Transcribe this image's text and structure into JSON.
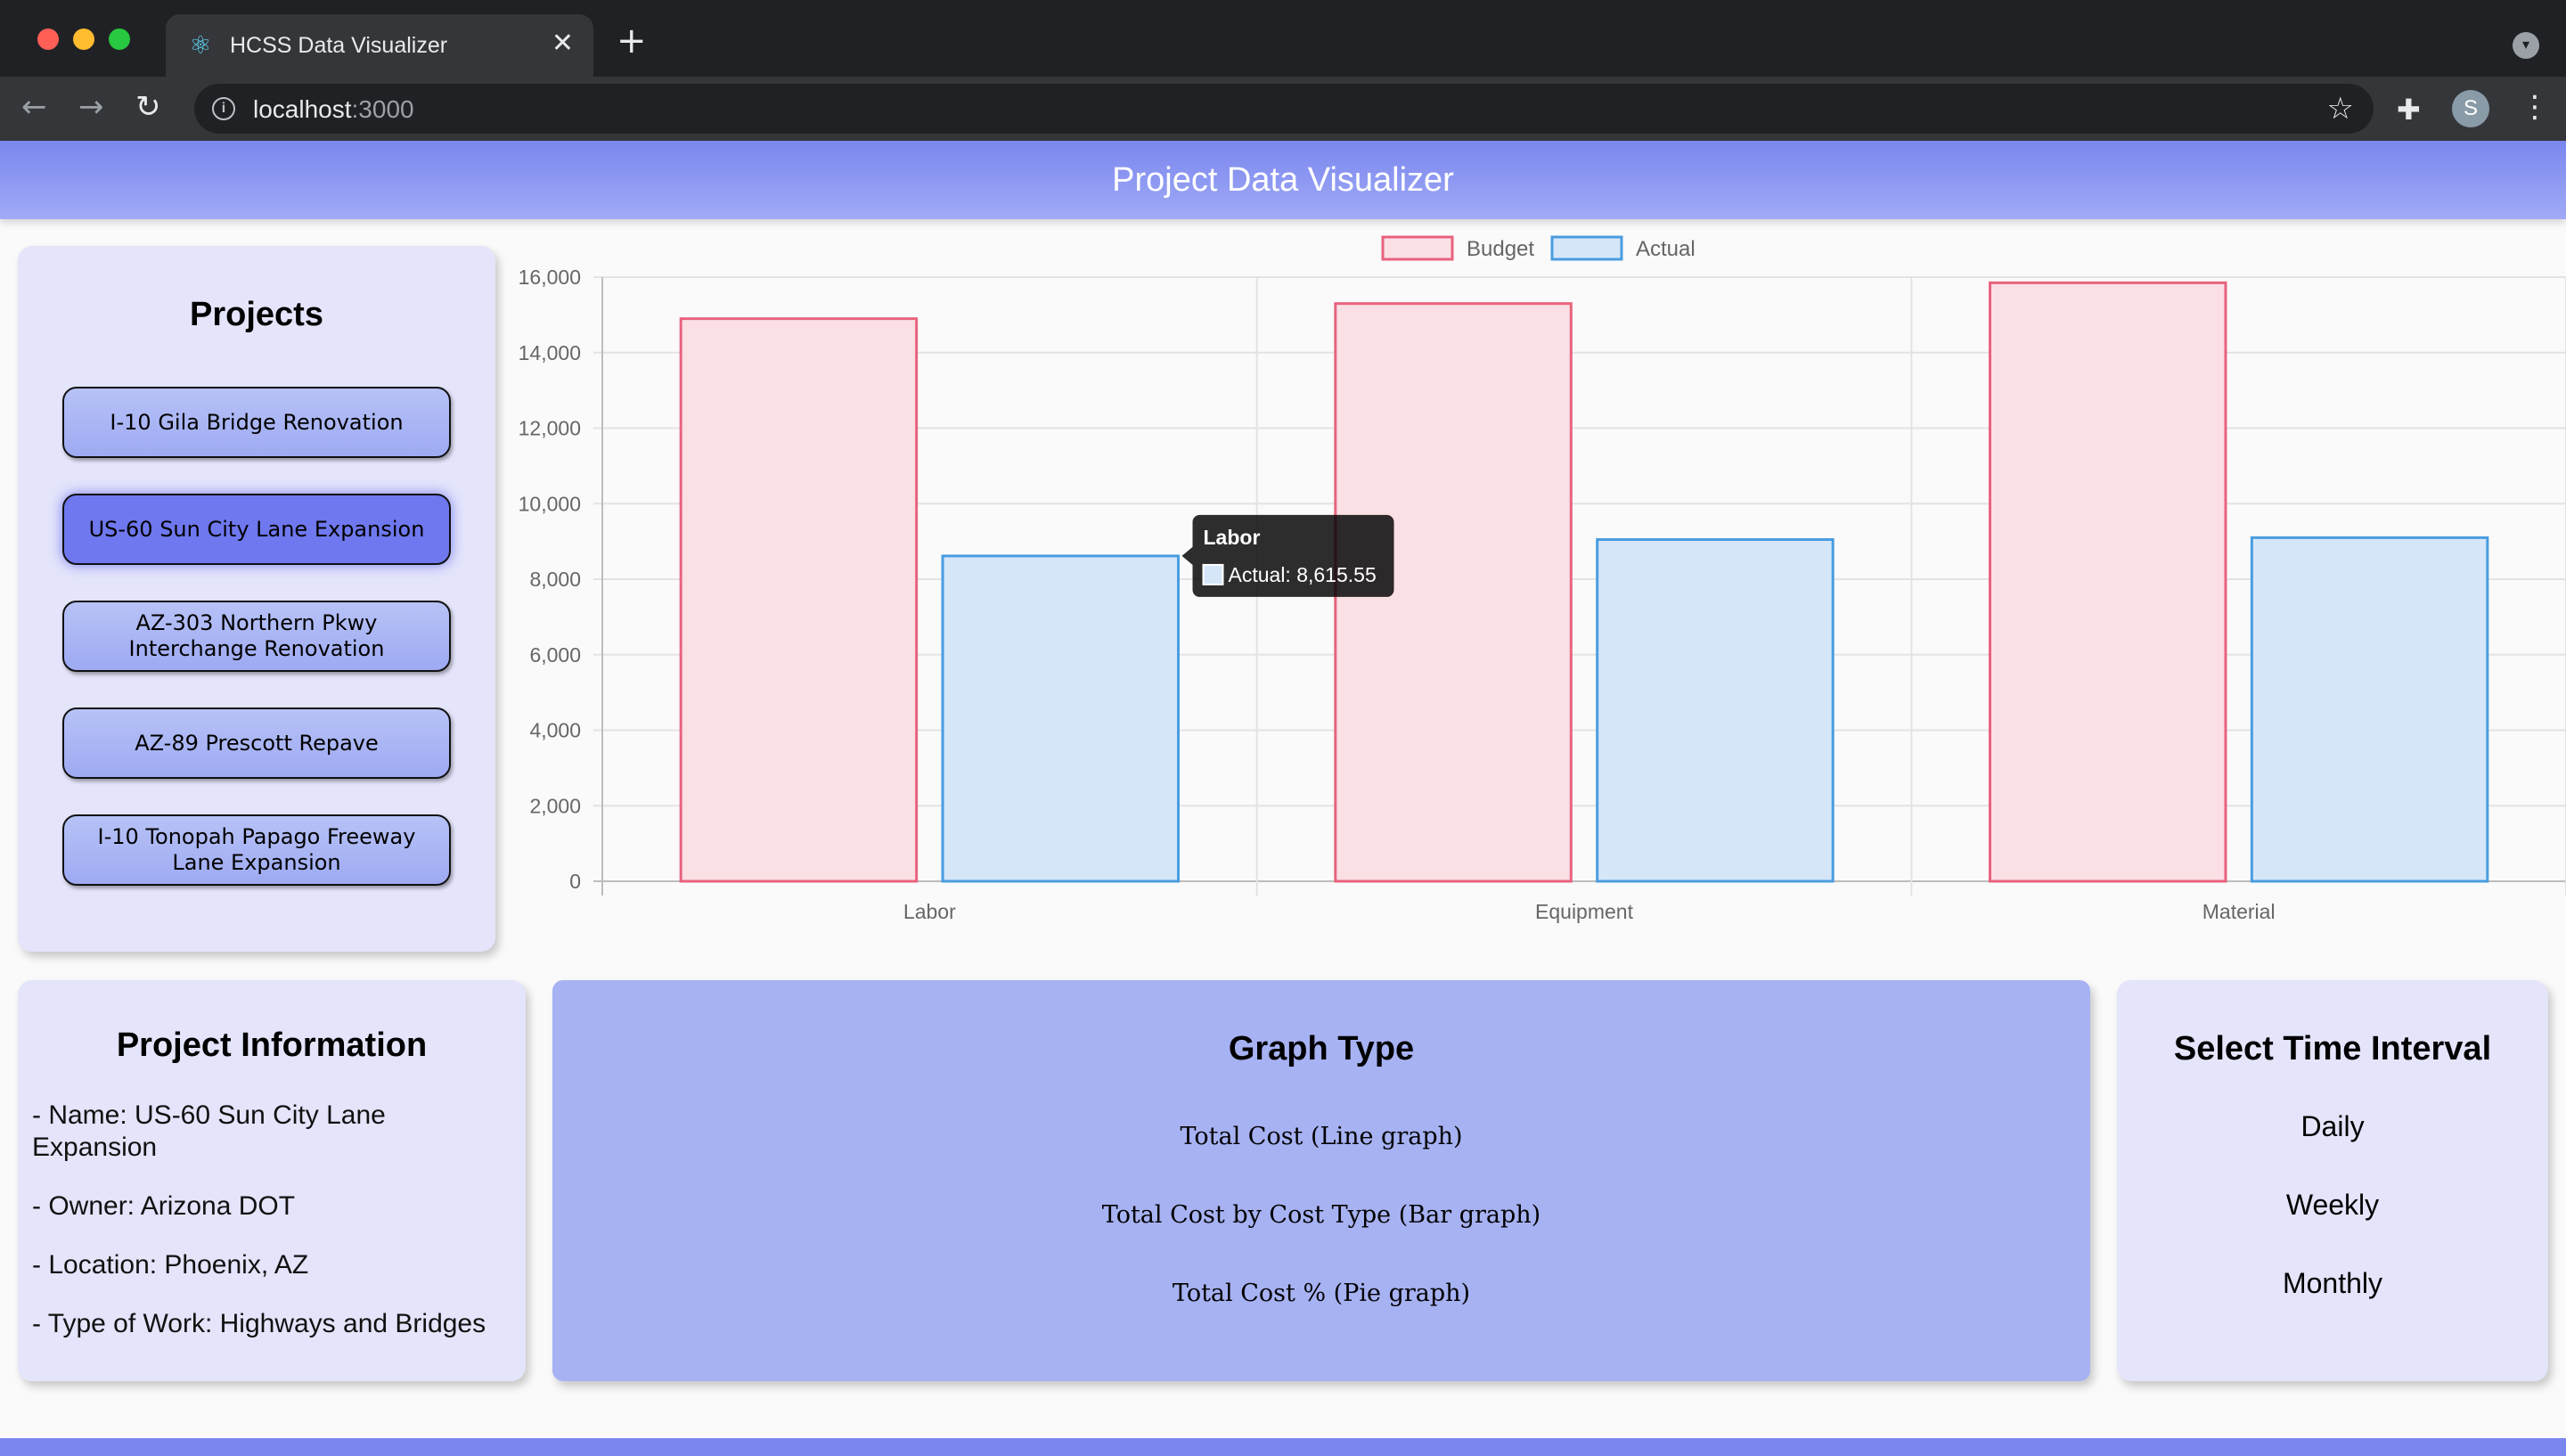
{
  "browser": {
    "tab_title": "HCSS Data Visualizer",
    "url_host": "localhost",
    "url_port": ":3000",
    "profile_initial": "S"
  },
  "app": {
    "title": "Project Data Visualizer"
  },
  "projects": {
    "heading": "Projects",
    "items": [
      {
        "label": "I-10 Gila Bridge Renovation",
        "active": false
      },
      {
        "label": "US-60 Sun City Lane Expansion",
        "active": true
      },
      {
        "label": "AZ-303 Northern Pkwy Interchange Renovation",
        "active": false
      },
      {
        "label": "AZ-89 Prescott Repave",
        "active": false
      },
      {
        "label": "I-10 Tonopah Papago Freeway Lane Expansion",
        "active": false
      }
    ]
  },
  "chart_data": {
    "type": "bar",
    "categories": [
      "Labor",
      "Equipment",
      "Material"
    ],
    "series": [
      {
        "name": "Budget",
        "values": [
          14900,
          15300,
          15850
        ],
        "fill": "#fadfe5",
        "stroke": "#e8637e"
      },
      {
        "name": "Actual",
        "values": [
          8615.55,
          9050,
          9100
        ],
        "fill": "#d6e6f9",
        "stroke": "#4a9de0"
      }
    ],
    "ylim": [
      0,
      16000
    ],
    "yticks": [
      "0",
      "2,000",
      "4,000",
      "6,000",
      "8,000",
      "10,000",
      "12,000",
      "14,000",
      "16,000"
    ],
    "grid": true,
    "legend": "top-center",
    "tooltip": {
      "title": "Labor",
      "label": "Actual: 8,615.55"
    }
  },
  "project_info": {
    "heading": "Project Information",
    "name": "- Name: US-60 Sun City Lane Expansion",
    "owner": "- Owner: Arizona DOT",
    "location": "- Location: Phoenix, AZ",
    "type_of_work": "- Type of Work: Highways and Bridges"
  },
  "graph_type": {
    "heading": "Graph Type",
    "options": [
      "Total Cost (Line graph)",
      "Total Cost by Cost Type (Bar graph)",
      "Total Cost % (Pie graph)"
    ]
  },
  "time_interval": {
    "heading": "Select Time Interval",
    "options": [
      "Daily",
      "Weekly",
      "Monthly"
    ]
  },
  "colors": {
    "accent": "#7b87ee",
    "panel": "#e4e4fb",
    "active_button": "#6f78ee"
  }
}
